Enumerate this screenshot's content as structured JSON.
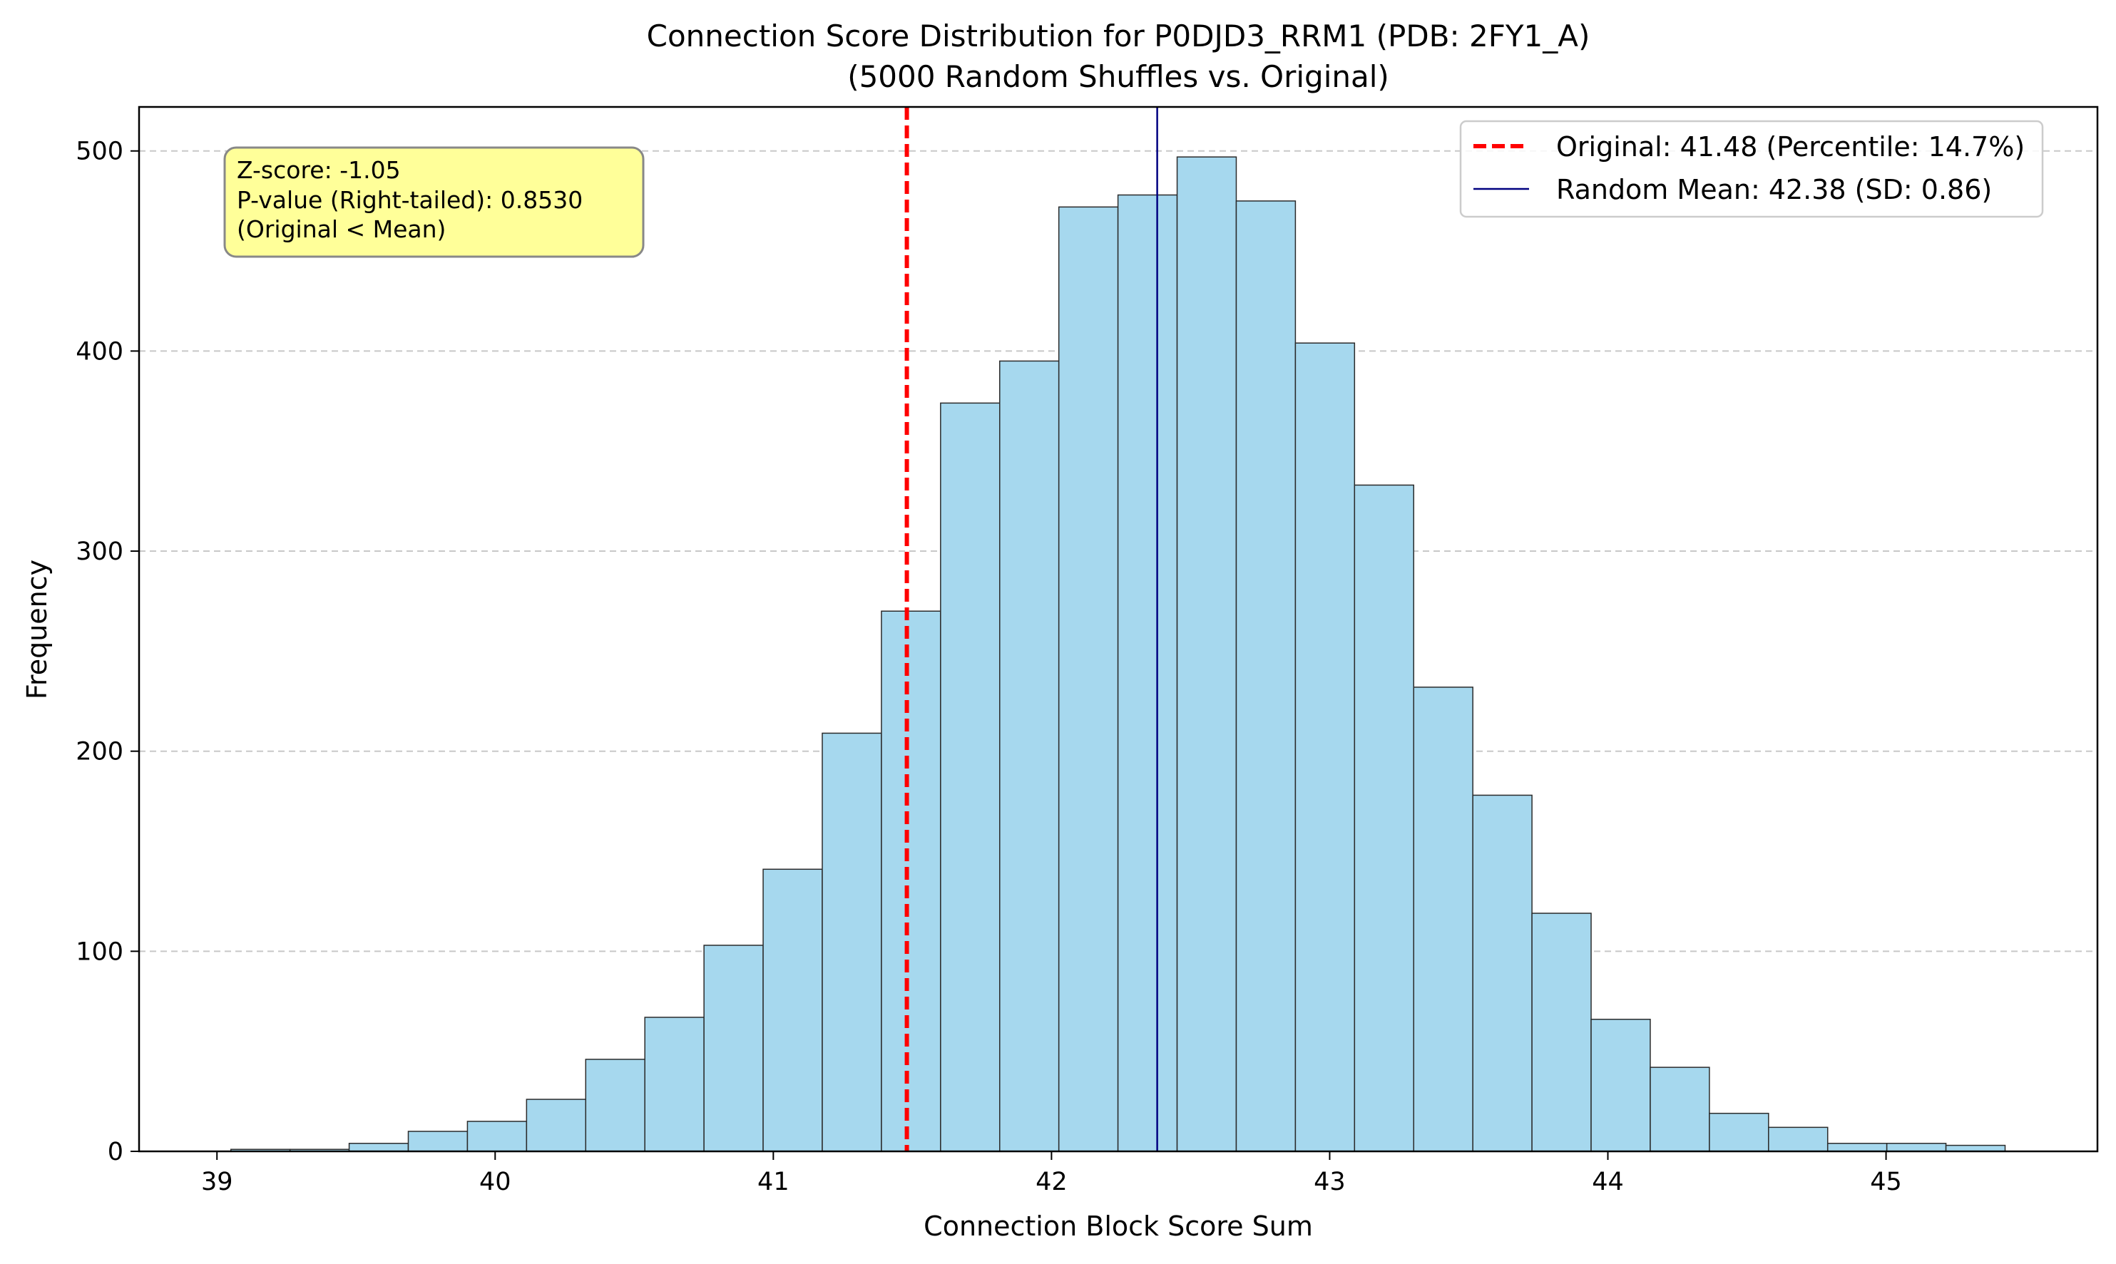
{
  "chart_data": {
    "type": "bar",
    "title": "Connection Score Distribution for P0DJD3_RRM1 (PDB: 2FY1_A)",
    "subtitle": "(5000 Random Shuffles vs. Original)",
    "xlabel": "Connection Block Score Sum",
    "ylabel": "Frequency",
    "xlim": [
      38.72,
      45.76
    ],
    "ylim": [
      0,
      522
    ],
    "x_ticks": [
      39,
      40,
      41,
      42,
      43,
      44,
      45
    ],
    "y_ticks": [
      0,
      100,
      200,
      300,
      400,
      500
    ],
    "grid": "y-dashed",
    "bar_color": "#a6d8ee",
    "bin_start": 39.05,
    "bin_width": 0.2126,
    "values": [
      1,
      1,
      4,
      10,
      15,
      26,
      46,
      67,
      103,
      141,
      209,
      270,
      374,
      395,
      472,
      478,
      497,
      475,
      404,
      333,
      232,
      178,
      119,
      66,
      42,
      19,
      12,
      4,
      4,
      3
    ],
    "reference_lines": [
      {
        "name": "Original: 41.48 (Percentile: 14.7%)",
        "x": 41.48,
        "color": "#ff0000",
        "style": "dashed"
      },
      {
        "name": "Random Mean: 42.38 (SD: 0.86)",
        "x": 42.38,
        "color": "#000080",
        "style": "solid"
      }
    ],
    "legend_position": "top-right",
    "annotation": {
      "lines": [
        "Z-score: -1.05",
        "P-value (Right-tailed): 0.8530",
        "(Original < Mean)"
      ],
      "background": "#ffff99"
    }
  }
}
